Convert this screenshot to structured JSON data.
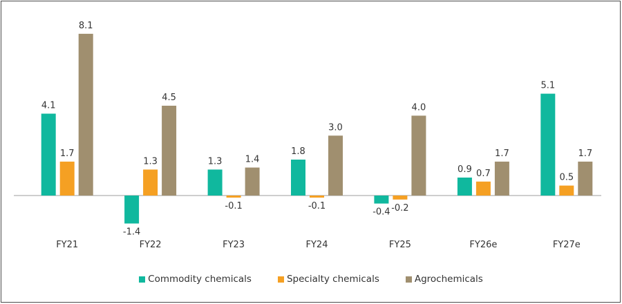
{
  "chart_data": {
    "type": "bar",
    "title": "",
    "xlabel": "",
    "ylabel": "",
    "categories": [
      "FY21",
      "FY22",
      "FY23",
      "FY24",
      "FY25",
      "FY26e",
      "FY27e"
    ],
    "series": [
      {
        "name": "Commodity chemicals",
        "color": "#10b89e",
        "values": [
          4.1,
          -1.4,
          1.3,
          1.8,
          -0.4,
          0.9,
          5.1
        ],
        "labels": [
          "4.1",
          "-1.4",
          "1.3",
          "1.8",
          "-0.4",
          "0.9",
          "5.1"
        ]
      },
      {
        "name": "Specialty chemicals",
        "color": "#f5a023",
        "values": [
          1.7,
          1.3,
          -0.1,
          -0.1,
          -0.2,
          0.7,
          0.5
        ],
        "labels": [
          "1.7",
          "1.3",
          "-0.1",
          "-0.1",
          "-0.2",
          "0.7",
          "0.5"
        ]
      },
      {
        "name": "Agrochemicals",
        "color": "#a08f6f",
        "values": [
          8.1,
          4.5,
          1.4,
          3.0,
          4.0,
          1.7,
          1.7
        ],
        "labels": [
          "8.1",
          "4.5",
          "1.4",
          "3.0",
          "4.0",
          "1.7",
          "1.7"
        ]
      }
    ],
    "ylim": [
      -1.4,
      8.1
    ],
    "grid": false,
    "legend_position": "bottom",
    "data_labels": true,
    "baseline_color": "#bdbdbd"
  }
}
